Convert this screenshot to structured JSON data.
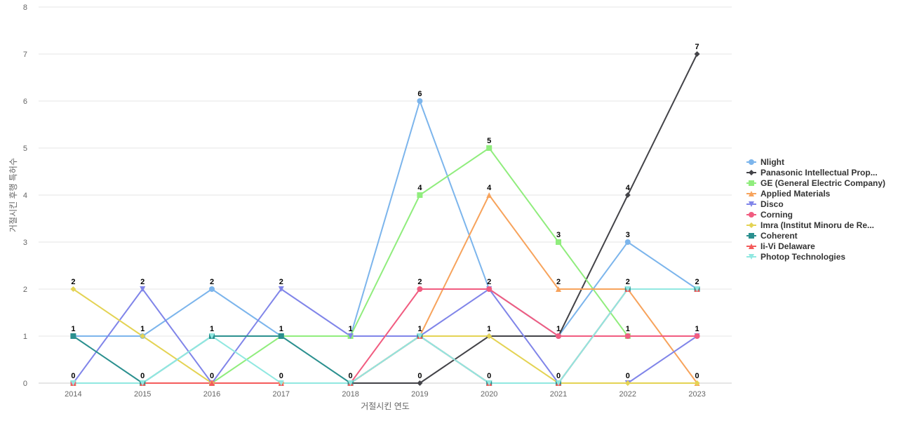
{
  "chart_data": {
    "type": "line",
    "title": "",
    "xlabel": "거절시킨 연도",
    "ylabel": "거절시킨 후행 특허수",
    "ylim": [
      0,
      8
    ],
    "yticks": [
      0,
      1,
      2,
      3,
      4,
      5,
      6,
      7,
      8
    ],
    "grid": true,
    "legend_position": "right",
    "data_labels": true,
    "x": [
      "2014",
      "2015",
      "2016",
      "2017",
      "2018",
      "2019",
      "2020",
      "2021",
      "2022",
      "2023"
    ],
    "series": [
      {
        "name": "Nlight",
        "color": "#7cb5ec",
        "marker": "circle",
        "values": [
          1,
          1,
          2,
          1,
          1,
          6,
          2,
          1,
          3,
          2
        ]
      },
      {
        "name": "Panasonic Intellectual Prop...",
        "color": "#434348",
        "marker": "diamond",
        "values": [
          0,
          0,
          0,
          0,
          0,
          0,
          1,
          1,
          4,
          7
        ]
      },
      {
        "name": "GE (General Electric Company)",
        "color": "#90ed7d",
        "marker": "square",
        "values": [
          0,
          0,
          0,
          1,
          1,
          4,
          5,
          3,
          1,
          null
        ]
      },
      {
        "name": "Applied Materials",
        "color": "#f7a35c",
        "marker": "triangle",
        "values": [
          0,
          0,
          0,
          0,
          0,
          1,
          4,
          2,
          2,
          0
        ]
      },
      {
        "name": "Disco",
        "color": "#8085e9",
        "marker": "triangle-down",
        "values": [
          0,
          2,
          0,
          2,
          1,
          1,
          2,
          0,
          0,
          1
        ]
      },
      {
        "name": "Corning",
        "color": "#f15c80",
        "marker": "circle",
        "values": [
          0,
          0,
          0,
          0,
          0,
          2,
          2,
          1,
          1,
          1
        ]
      },
      {
        "name": "Imra (Institut Minoru de Re...",
        "color": "#e4d354",
        "marker": "diamond",
        "values": [
          2,
          1,
          0,
          0,
          0,
          1,
          1,
          0,
          0,
          0
        ]
      },
      {
        "name": "Coherent",
        "color": "#2b908f",
        "marker": "square",
        "values": [
          1,
          0,
          1,
          1,
          0,
          1,
          0,
          0,
          2,
          2
        ]
      },
      {
        "name": "Ii-Vi Delaware",
        "color": "#f45b5b",
        "marker": "triangle",
        "values": [
          0,
          0,
          0,
          0,
          0,
          1,
          0,
          0,
          2,
          2
        ]
      },
      {
        "name": "Photop Technologies",
        "color": "#91e8e1",
        "marker": "triangle-down",
        "values": [
          0,
          0,
          1,
          0,
          0,
          1,
          0,
          0,
          2,
          2
        ]
      }
    ],
    "value_labels": [
      {
        "x": "2014",
        "labels": [
          {
            "text": "2",
            "value": 2
          },
          {
            "text": "1",
            "value": 1
          },
          {
            "text": "0",
            "value": 0
          }
        ]
      },
      {
        "x": "2015",
        "labels": [
          {
            "text": "2",
            "value": 2
          },
          {
            "text": "1",
            "value": 1
          },
          {
            "text": "0",
            "value": 0
          }
        ]
      },
      {
        "x": "2016",
        "labels": [
          {
            "text": "2",
            "value": 2
          },
          {
            "text": "1",
            "value": 1
          },
          {
            "text": "0",
            "value": 0
          }
        ]
      },
      {
        "x": "2017",
        "labels": [
          {
            "text": "2",
            "value": 2
          },
          {
            "text": "1",
            "value": 1
          },
          {
            "text": "0",
            "value": 0
          }
        ]
      },
      {
        "x": "2018",
        "labels": [
          {
            "text": "1",
            "value": 1
          },
          {
            "text": "0",
            "value": 0
          }
        ]
      },
      {
        "x": "2019",
        "labels": [
          {
            "text": "6",
            "value": 6
          },
          {
            "text": "4",
            "value": 4
          },
          {
            "text": "2",
            "value": 2
          },
          {
            "text": "1",
            "value": 1
          },
          {
            "text": "0",
            "value": 0
          }
        ]
      },
      {
        "x": "2020",
        "labels": [
          {
            "text": "5",
            "value": 5
          },
          {
            "text": "4",
            "value": 4
          },
          {
            "text": "2",
            "value": 2
          },
          {
            "text": "1",
            "value": 1
          },
          {
            "text": "0",
            "value": 0
          }
        ]
      },
      {
        "x": "2021",
        "labels": [
          {
            "text": "3",
            "value": 3
          },
          {
            "text": "2",
            "value": 2
          },
          {
            "text": "1",
            "value": 1
          },
          {
            "text": "0",
            "value": 0
          }
        ]
      },
      {
        "x": "2022",
        "labels": [
          {
            "text": "4",
            "value": 4
          },
          {
            "text": "3",
            "value": 3
          },
          {
            "text": "2",
            "value": 2
          },
          {
            "text": "1",
            "value": 1
          },
          {
            "text": "0",
            "value": 0
          }
        ]
      },
      {
        "x": "2023",
        "labels": [
          {
            "text": "7",
            "value": 7
          },
          {
            "text": "2",
            "value": 2
          },
          {
            "text": "1",
            "value": 1
          },
          {
            "text": "0",
            "value": 0
          }
        ]
      }
    ]
  }
}
